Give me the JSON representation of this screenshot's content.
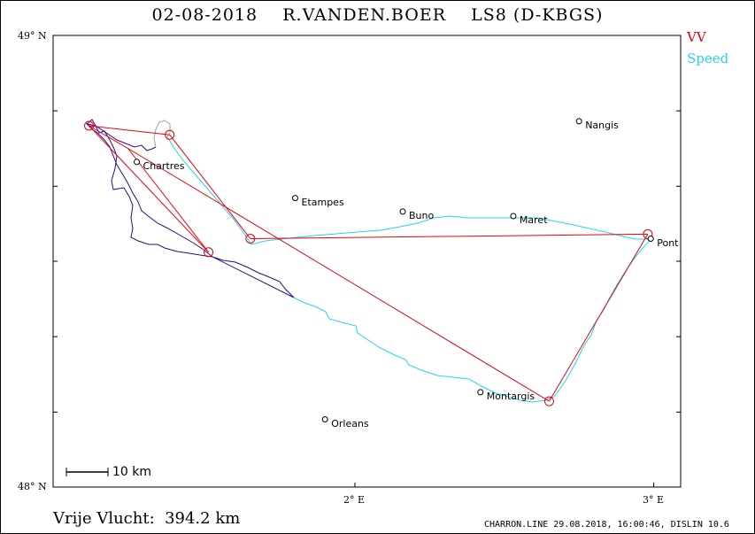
{
  "title": "02-08-2018    R.VANDEN.BOER    LS8 (D-KBGS)",
  "legend": {
    "vv": "VV",
    "speed": "Speed"
  },
  "axes": {
    "lat_top": "49° N",
    "lat_bottom": "48° N",
    "lon_2": "2° E",
    "lon_3": "3° E"
  },
  "scale_label": "10 km",
  "distance_text": "Vrije Vlucht:  394.2 km",
  "footer": "CHARRON.LINE 29.08.2018, 16:00:46, DISLIN 10.6",
  "colors": {
    "task": "#e8000b",
    "track_fast": "#1ed7f0",
    "track_slow": "#2b0a8a",
    "frame": "#000000"
  },
  "towns": [
    {
      "name": "Nangis",
      "lon": 2.75,
      "lat": 48.81
    },
    {
      "name": "Chartres",
      "lon": 1.27,
      "lat": 48.72
    },
    {
      "name": "Etampes",
      "lon": 1.8,
      "lat": 48.64
    },
    {
      "name": "Buno",
      "lon": 2.16,
      "lat": 48.61
    },
    {
      "name": "Maret",
      "lon": 2.53,
      "lat": 48.6
    },
    {
      "name": "Pont",
      "lon": 2.99,
      "lat": 48.55
    },
    {
      "name": "Montargis",
      "lon": 2.42,
      "lat": 48.21
    },
    {
      "name": "Orleans",
      "lon": 1.9,
      "lat": 48.15
    }
  ],
  "task_points": [
    {
      "lon": 1.11,
      "lat": 48.8
    },
    {
      "lon": 1.24,
      "lat": 48.75
    },
    {
      "lon": 1.51,
      "lat": 48.52
    },
    {
      "lon": 1.11,
      "lat": 48.8
    },
    {
      "lon": 1.38,
      "lat": 48.78
    },
    {
      "lon": 1.65,
      "lat": 48.55
    },
    {
      "lon": 2.98,
      "lat": 48.56
    },
    {
      "lon": 2.65,
      "lat": 48.19
    },
    {
      "lon": 1.24,
      "lat": 48.75
    }
  ],
  "turnpoints": [
    {
      "lon": 1.11,
      "lat": 48.8
    },
    {
      "lon": 1.51,
      "lat": 48.52
    },
    {
      "lon": 1.65,
      "lat": 48.55
    },
    {
      "lon": 2.98,
      "lat": 48.56
    },
    {
      "lon": 2.65,
      "lat": 48.19
    },
    {
      "lon": 1.38,
      "lat": 48.78
    }
  ]
}
